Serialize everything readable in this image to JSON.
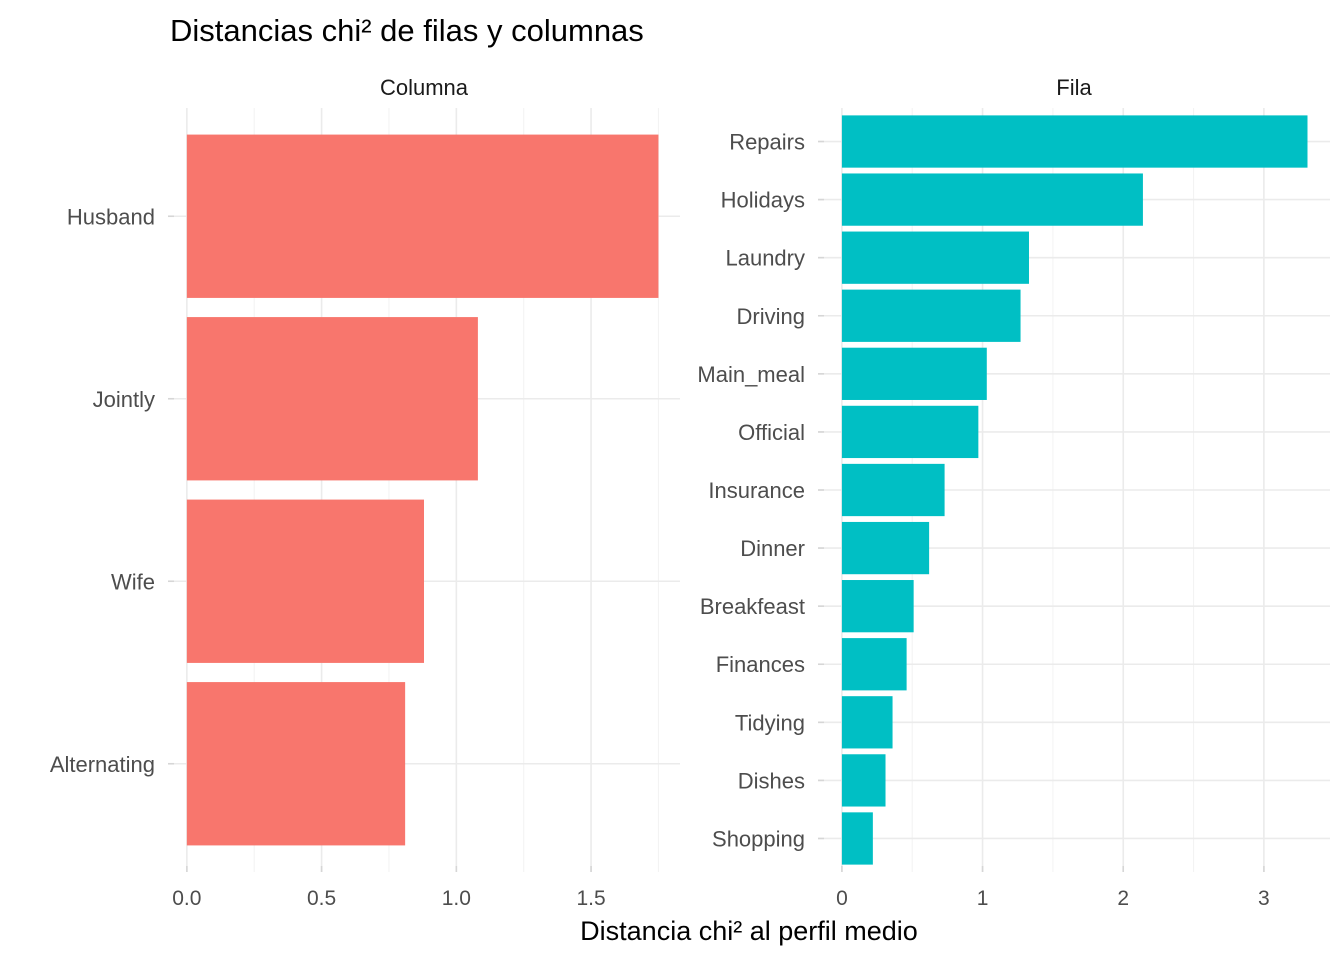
{
  "title": "Distancias chi² de filas y columnas",
  "xlabel": "Distancia chi² al perfil medio",
  "chart_data": [
    {
      "type": "bar",
      "orientation": "horizontal",
      "panel": "Columna",
      "color": "#F8766D",
      "categories": [
        "Husband",
        "Jointly",
        "Wife",
        "Alternating"
      ],
      "values": [
        1.75,
        1.08,
        0.88,
        0.81
      ],
      "xlim": [
        -0.07,
        1.83
      ],
      "xticks": [
        "0.0",
        "0.5",
        "1.0",
        "1.5"
      ],
      "grid": true
    },
    {
      "type": "bar",
      "orientation": "horizontal",
      "panel": "Fila",
      "color": "#00BFC4",
      "categories": [
        "Repairs",
        "Holidays",
        "Laundry",
        "Driving",
        "Main_meal",
        "Official",
        "Insurance",
        "Dinner",
        "Breakfeast",
        "Finances",
        "Tidying",
        "Dishes",
        "Shopping"
      ],
      "values": [
        3.31,
        2.14,
        1.33,
        1.27,
        1.03,
        0.97,
        0.73,
        0.62,
        0.51,
        0.46,
        0.36,
        0.31,
        0.22
      ],
      "xlim": [
        -0.17,
        3.47
      ],
      "xticks": [
        "0",
        "1",
        "2",
        "3"
      ],
      "grid": true
    }
  ]
}
